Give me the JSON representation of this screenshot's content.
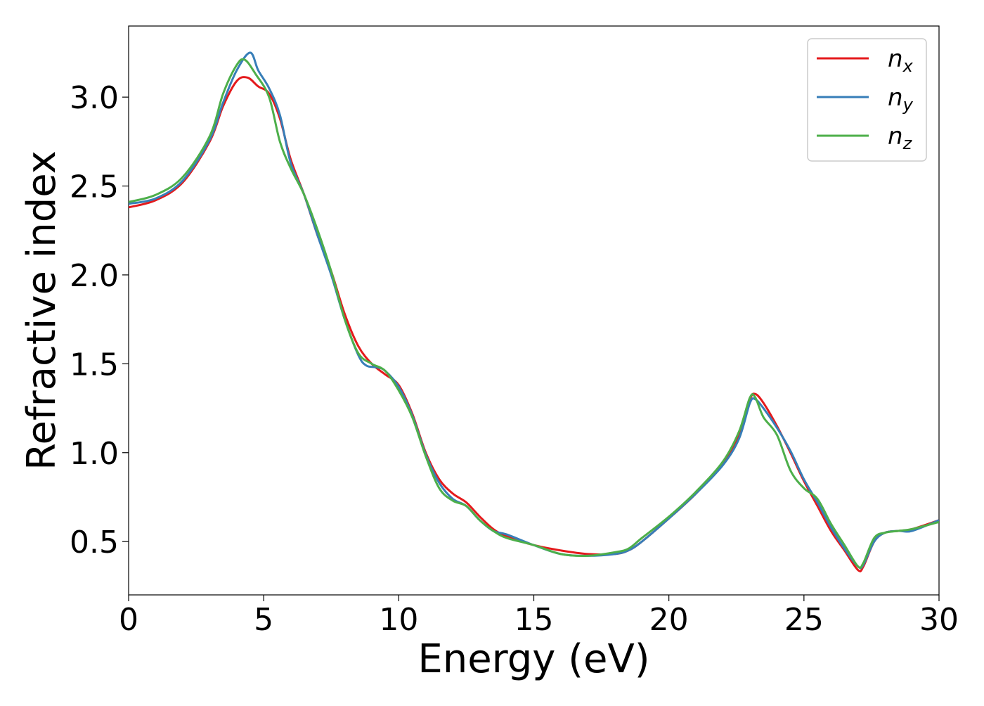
{
  "chart_data": {
    "type": "line",
    "title": "",
    "xlabel": "Energy (eV)",
    "ylabel": "Refractive index",
    "xlim": [
      0,
      30
    ],
    "ylim": [
      0.2,
      3.4
    ],
    "xticks": [
      0,
      5,
      10,
      15,
      20,
      25,
      30
    ],
    "xtick_labels": [
      "0",
      "5",
      "10",
      "15",
      "20",
      "25",
      "30"
    ],
    "yticks": [
      0.5,
      1.0,
      1.5,
      2.0,
      2.5,
      3.0
    ],
    "ytick_labels": [
      "0.5",
      "1.0",
      "1.5",
      "2.0",
      "2.5",
      "3.0"
    ],
    "grid": false,
    "legend_position": "top-right",
    "series": [
      {
        "name": "n",
        "subscript": "x",
        "color": "#e41a1c",
        "points": [
          [
            0,
            2.38
          ],
          [
            1,
            2.42
          ],
          [
            2,
            2.52
          ],
          [
            3,
            2.75
          ],
          [
            3.5,
            2.95
          ],
          [
            4,
            3.09
          ],
          [
            4.4,
            3.11
          ],
          [
            4.8,
            3.06
          ],
          [
            5.2,
            3.02
          ],
          [
            5.6,
            2.88
          ],
          [
            6,
            2.65
          ],
          [
            6.5,
            2.45
          ],
          [
            7,
            2.22
          ],
          [
            7.5,
            2.02
          ],
          [
            8,
            1.78
          ],
          [
            8.5,
            1.6
          ],
          [
            9,
            1.5
          ],
          [
            9.5,
            1.44
          ],
          [
            10,
            1.38
          ],
          [
            10.5,
            1.22
          ],
          [
            11,
            1.0
          ],
          [
            11.5,
            0.85
          ],
          [
            12,
            0.77
          ],
          [
            12.5,
            0.72
          ],
          [
            13,
            0.64
          ],
          [
            13.5,
            0.57
          ],
          [
            14,
            0.53
          ],
          [
            15,
            0.48
          ],
          [
            16,
            0.45
          ],
          [
            17,
            0.43
          ],
          [
            18,
            0.43
          ],
          [
            18.5,
            0.45
          ],
          [
            19,
            0.5
          ],
          [
            20,
            0.63
          ],
          [
            21,
            0.77
          ],
          [
            22,
            0.94
          ],
          [
            22.6,
            1.1
          ],
          [
            23,
            1.3
          ],
          [
            23.2,
            1.33
          ],
          [
            23.5,
            1.28
          ],
          [
            24,
            1.15
          ],
          [
            24.5,
            1.0
          ],
          [
            25,
            0.84
          ],
          [
            25.5,
            0.7
          ],
          [
            26,
            0.56
          ],
          [
            26.5,
            0.45
          ],
          [
            27,
            0.34
          ],
          [
            27.2,
            0.36
          ],
          [
            27.6,
            0.5
          ],
          [
            28,
            0.55
          ],
          [
            28.5,
            0.56
          ],
          [
            29,
            0.57
          ],
          [
            30,
            0.62
          ]
        ]
      },
      {
        "name": "n",
        "subscript": "y",
        "color": "#377eb8",
        "points": [
          [
            0,
            2.4
          ],
          [
            1,
            2.43
          ],
          [
            2,
            2.53
          ],
          [
            3,
            2.76
          ],
          [
            3.5,
            2.97
          ],
          [
            4,
            3.15
          ],
          [
            4.5,
            3.25
          ],
          [
            4.8,
            3.15
          ],
          [
            5.2,
            3.05
          ],
          [
            5.6,
            2.9
          ],
          [
            6,
            2.63
          ],
          [
            6.5,
            2.45
          ],
          [
            7,
            2.22
          ],
          [
            7.5,
            2.0
          ],
          [
            8,
            1.75
          ],
          [
            8.5,
            1.55
          ],
          [
            8.8,
            1.49
          ],
          [
            9.2,
            1.48
          ],
          [
            9.5,
            1.46
          ],
          [
            10,
            1.37
          ],
          [
            10.5,
            1.21
          ],
          [
            11,
            0.99
          ],
          [
            11.5,
            0.83
          ],
          [
            12,
            0.74
          ],
          [
            12.5,
            0.7
          ],
          [
            13,
            0.62
          ],
          [
            13.5,
            0.56
          ],
          [
            14,
            0.54
          ],
          [
            15,
            0.48
          ],
          [
            16,
            0.43
          ],
          [
            17,
            0.42
          ],
          [
            18,
            0.43
          ],
          [
            18.5,
            0.45
          ],
          [
            19,
            0.5
          ],
          [
            20,
            0.63
          ],
          [
            21,
            0.77
          ],
          [
            22,
            0.93
          ],
          [
            22.6,
            1.08
          ],
          [
            23,
            1.28
          ],
          [
            23.2,
            1.3
          ],
          [
            23.5,
            1.25
          ],
          [
            24,
            1.14
          ],
          [
            24.5,
            1.01
          ],
          [
            25,
            0.85
          ],
          [
            25.5,
            0.72
          ],
          [
            26,
            0.58
          ],
          [
            26.5,
            0.46
          ],
          [
            27,
            0.36
          ],
          [
            27.2,
            0.37
          ],
          [
            27.6,
            0.5
          ],
          [
            28,
            0.55
          ],
          [
            28.5,
            0.56
          ],
          [
            29,
            0.56
          ],
          [
            30,
            0.62
          ]
        ]
      },
      {
        "name": "n",
        "subscript": "z",
        "color": "#4daf4a",
        "points": [
          [
            0,
            2.41
          ],
          [
            1,
            2.45
          ],
          [
            2,
            2.55
          ],
          [
            3,
            2.78
          ],
          [
            3.5,
            3.02
          ],
          [
            4,
            3.18
          ],
          [
            4.3,
            3.21
          ],
          [
            4.7,
            3.13
          ],
          [
            5.2,
            3.0
          ],
          [
            5.6,
            2.75
          ],
          [
            6,
            2.6
          ],
          [
            6.5,
            2.45
          ],
          [
            7,
            2.25
          ],
          [
            7.5,
            2.02
          ],
          [
            8,
            1.75
          ],
          [
            8.5,
            1.56
          ],
          [
            9,
            1.5
          ],
          [
            9.5,
            1.46
          ],
          [
            10,
            1.35
          ],
          [
            10.5,
            1.2
          ],
          [
            11,
            0.98
          ],
          [
            11.5,
            0.8
          ],
          [
            12,
            0.73
          ],
          [
            12.5,
            0.7
          ],
          [
            13,
            0.62
          ],
          [
            13.5,
            0.56
          ],
          [
            14,
            0.52
          ],
          [
            15,
            0.48
          ],
          [
            16,
            0.43
          ],
          [
            17,
            0.42
          ],
          [
            18,
            0.44
          ],
          [
            18.5,
            0.46
          ],
          [
            19,
            0.52
          ],
          [
            20,
            0.64
          ],
          [
            21,
            0.78
          ],
          [
            22,
            0.95
          ],
          [
            22.6,
            1.12
          ],
          [
            23,
            1.31
          ],
          [
            23.2,
            1.31
          ],
          [
            23.5,
            1.2
          ],
          [
            24,
            1.1
          ],
          [
            24.5,
            0.9
          ],
          [
            25,
            0.8
          ],
          [
            25.5,
            0.74
          ],
          [
            26,
            0.6
          ],
          [
            26.5,
            0.48
          ],
          [
            27,
            0.36
          ],
          [
            27.2,
            0.38
          ],
          [
            27.6,
            0.52
          ],
          [
            28,
            0.55
          ],
          [
            28.5,
            0.56
          ],
          [
            29,
            0.57
          ],
          [
            30,
            0.61
          ]
        ]
      }
    ]
  }
}
